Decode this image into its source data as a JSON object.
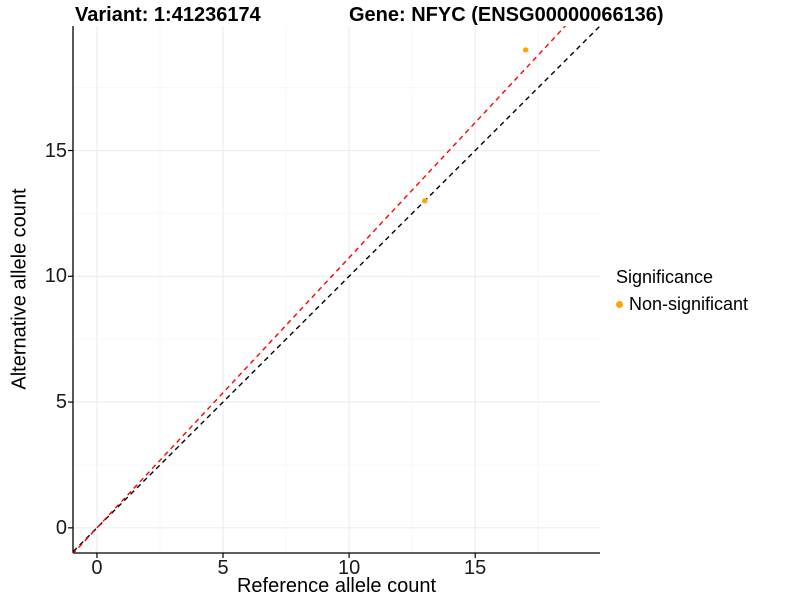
{
  "chart_data": {
    "type": "scatter",
    "title_left": "Variant: 1:41236174",
    "title_right": "Gene: NFYC (ENSG00000066136)",
    "xlabel": "Reference allele count",
    "ylabel": "Alternative allele count",
    "xlim": [
      -0.95,
      19.95
    ],
    "ylim": [
      -1,
      19.95
    ],
    "x_ticks": [
      0,
      5,
      10,
      15
    ],
    "y_ticks": [
      0,
      5,
      10,
      15
    ],
    "x_minor_ticks": [
      2.5,
      7.5,
      12.5,
      17.5
    ],
    "y_minor_ticks": [
      2.5,
      7.5,
      12.5,
      17.5
    ],
    "grid": "major+minor",
    "legend_position": "right",
    "series": [
      {
        "name": "Non-significant",
        "color": "#FFA500",
        "points": [
          {
            "x": 13,
            "y": 13
          },
          {
            "x": 17,
            "y": 19
          }
        ]
      }
    ],
    "lines": [
      {
        "name": "identity",
        "slope": 1,
        "intercept": 0,
        "color": "#000000",
        "style": "dashed"
      },
      {
        "name": "fit",
        "slope": 1.074,
        "intercept": 0,
        "color": "#FF0000",
        "style": "dashed"
      }
    ],
    "legend": {
      "title": "Significance",
      "entries": [
        {
          "label": "Non-significant",
          "color": "#FFA500"
        }
      ]
    },
    "colors": {
      "grid_major": "#EDEDED",
      "grid_minor": "#F7F7F7",
      "axis": "#000000"
    }
  }
}
